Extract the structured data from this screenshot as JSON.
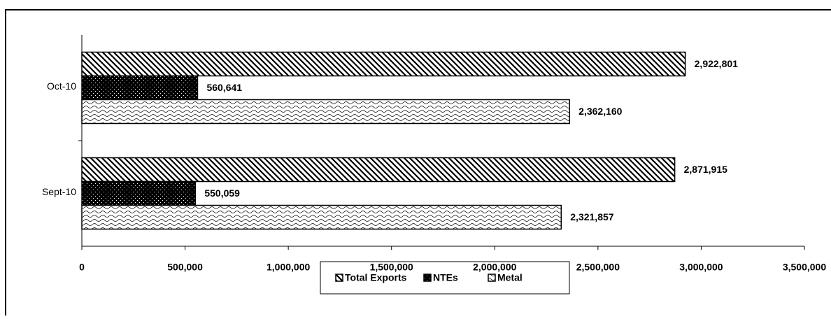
{
  "chart_data": {
    "type": "bar",
    "orientation": "horizontal",
    "categories": [
      "Oct-10",
      "Sept-10"
    ],
    "series": [
      {
        "name": "Total Exports",
        "color": "#000000",
        "values": [
          2922801,
          2871915
        ],
        "value_labels": [
          "2,922,801",
          "2,871,915"
        ]
      },
      {
        "name": "NTEs",
        "color": "#000000",
        "values": [
          560641,
          550059
        ],
        "value_labels": [
          "560,641",
          "550,059"
        ]
      },
      {
        "name": "Metal",
        "color": "#000000",
        "values": [
          2362160,
          2321857
        ],
        "value_labels": [
          "2,362,160",
          "2,321,857"
        ]
      }
    ],
    "xlim": [
      0,
      3500000
    ],
    "xticks": [
      0,
      {
        "value": 500000,
        "label": "500,000"
      },
      {
        "value": 1000000,
        "label": "1,000,000"
      },
      {
        "value": 1500000,
        "label": "1,500,000"
      },
      {
        "value": 2000000,
        "label": "2,000,000"
      },
      {
        "value": 2500000,
        "label": "2,500,000"
      },
      {
        "value": 3000000,
        "label": "3,000,000"
      },
      {
        "value": 3500000,
        "label": "3,500,000"
      }
    ],
    "grid": false,
    "legend": "bottom"
  }
}
